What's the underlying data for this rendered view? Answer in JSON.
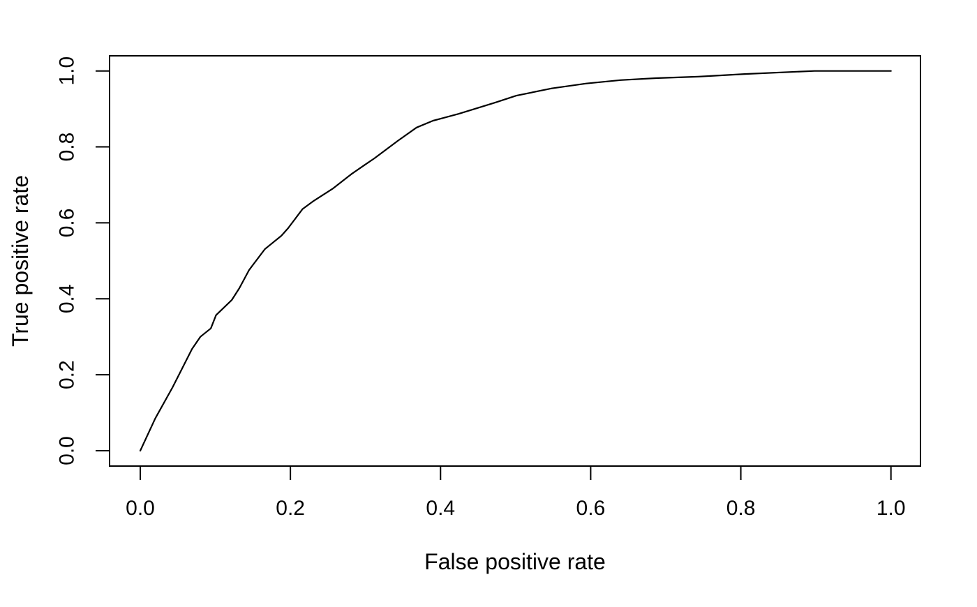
{
  "chart_data": {
    "type": "line",
    "title": "",
    "xlabel": "False positive rate",
    "ylabel": "True positive rate",
    "xlim": [
      0.0,
      1.0
    ],
    "ylim": [
      0.0,
      1.0
    ],
    "x_ticks": [
      0.0,
      0.2,
      0.4,
      0.6,
      0.8,
      1.0
    ],
    "y_ticks": [
      0.0,
      0.2,
      0.4,
      0.6,
      0.8,
      1.0
    ],
    "x_tick_labels": [
      "0.0",
      "0.2",
      "0.4",
      "0.6",
      "0.8",
      "1.0"
    ],
    "y_tick_labels": [
      "0.0",
      "0.2",
      "0.4",
      "0.6",
      "0.8",
      "1.0"
    ],
    "grid": false,
    "legend": false,
    "background_color": "#ffffff",
    "line_color": "#000000",
    "box_color": "#000000",
    "series": [
      {
        "x": [
          0.0,
          0.02,
          0.043,
          0.069,
          0.08,
          0.094,
          0.101,
          0.122,
          0.132,
          0.145,
          0.166,
          0.188,
          0.197,
          0.216,
          0.231,
          0.257,
          0.281,
          0.297,
          0.312,
          0.343,
          0.368,
          0.39,
          0.424,
          0.455,
          0.473,
          0.501,
          0.548,
          0.594,
          0.64,
          0.687,
          0.743,
          0.805,
          0.898,
          1.0
        ],
        "y": [
          0.0,
          0.085,
          0.167,
          0.268,
          0.3,
          0.322,
          0.357,
          0.397,
          0.428,
          0.476,
          0.531,
          0.566,
          0.586,
          0.636,
          0.658,
          0.691,
          0.728,
          0.75,
          0.77,
          0.816,
          0.851,
          0.869,
          0.887,
          0.906,
          0.917,
          0.935,
          0.954,
          0.967,
          0.976,
          0.981,
          0.985,
          0.992,
          1.0,
          1.0
        ]
      }
    ]
  }
}
